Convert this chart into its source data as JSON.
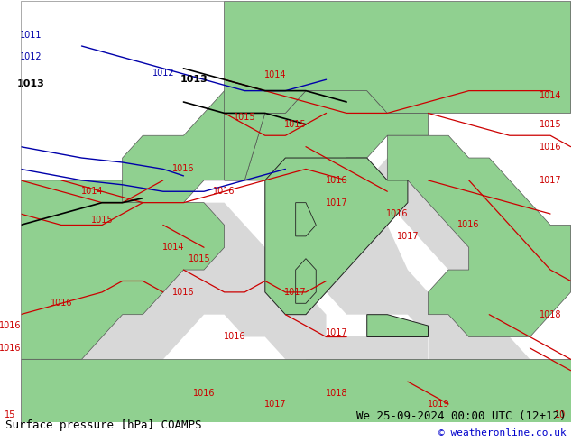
{
  "title_left": "Surface pressure [hPa] COAMPS",
  "title_right": "We 25-09-2024 00:00 UTC (12+12)",
  "copyright": "© weatheronline.co.uk",
  "bg_color": "#c8e6c8",
  "land_color": "#90d090",
  "sea_color": "#d8d8d8",
  "fig_width": 6.34,
  "fig_height": 4.9,
  "dpi": 100,
  "title_fontsize": 9,
  "copyright_fontsize": 8,
  "isobar_fontsize": 7
}
